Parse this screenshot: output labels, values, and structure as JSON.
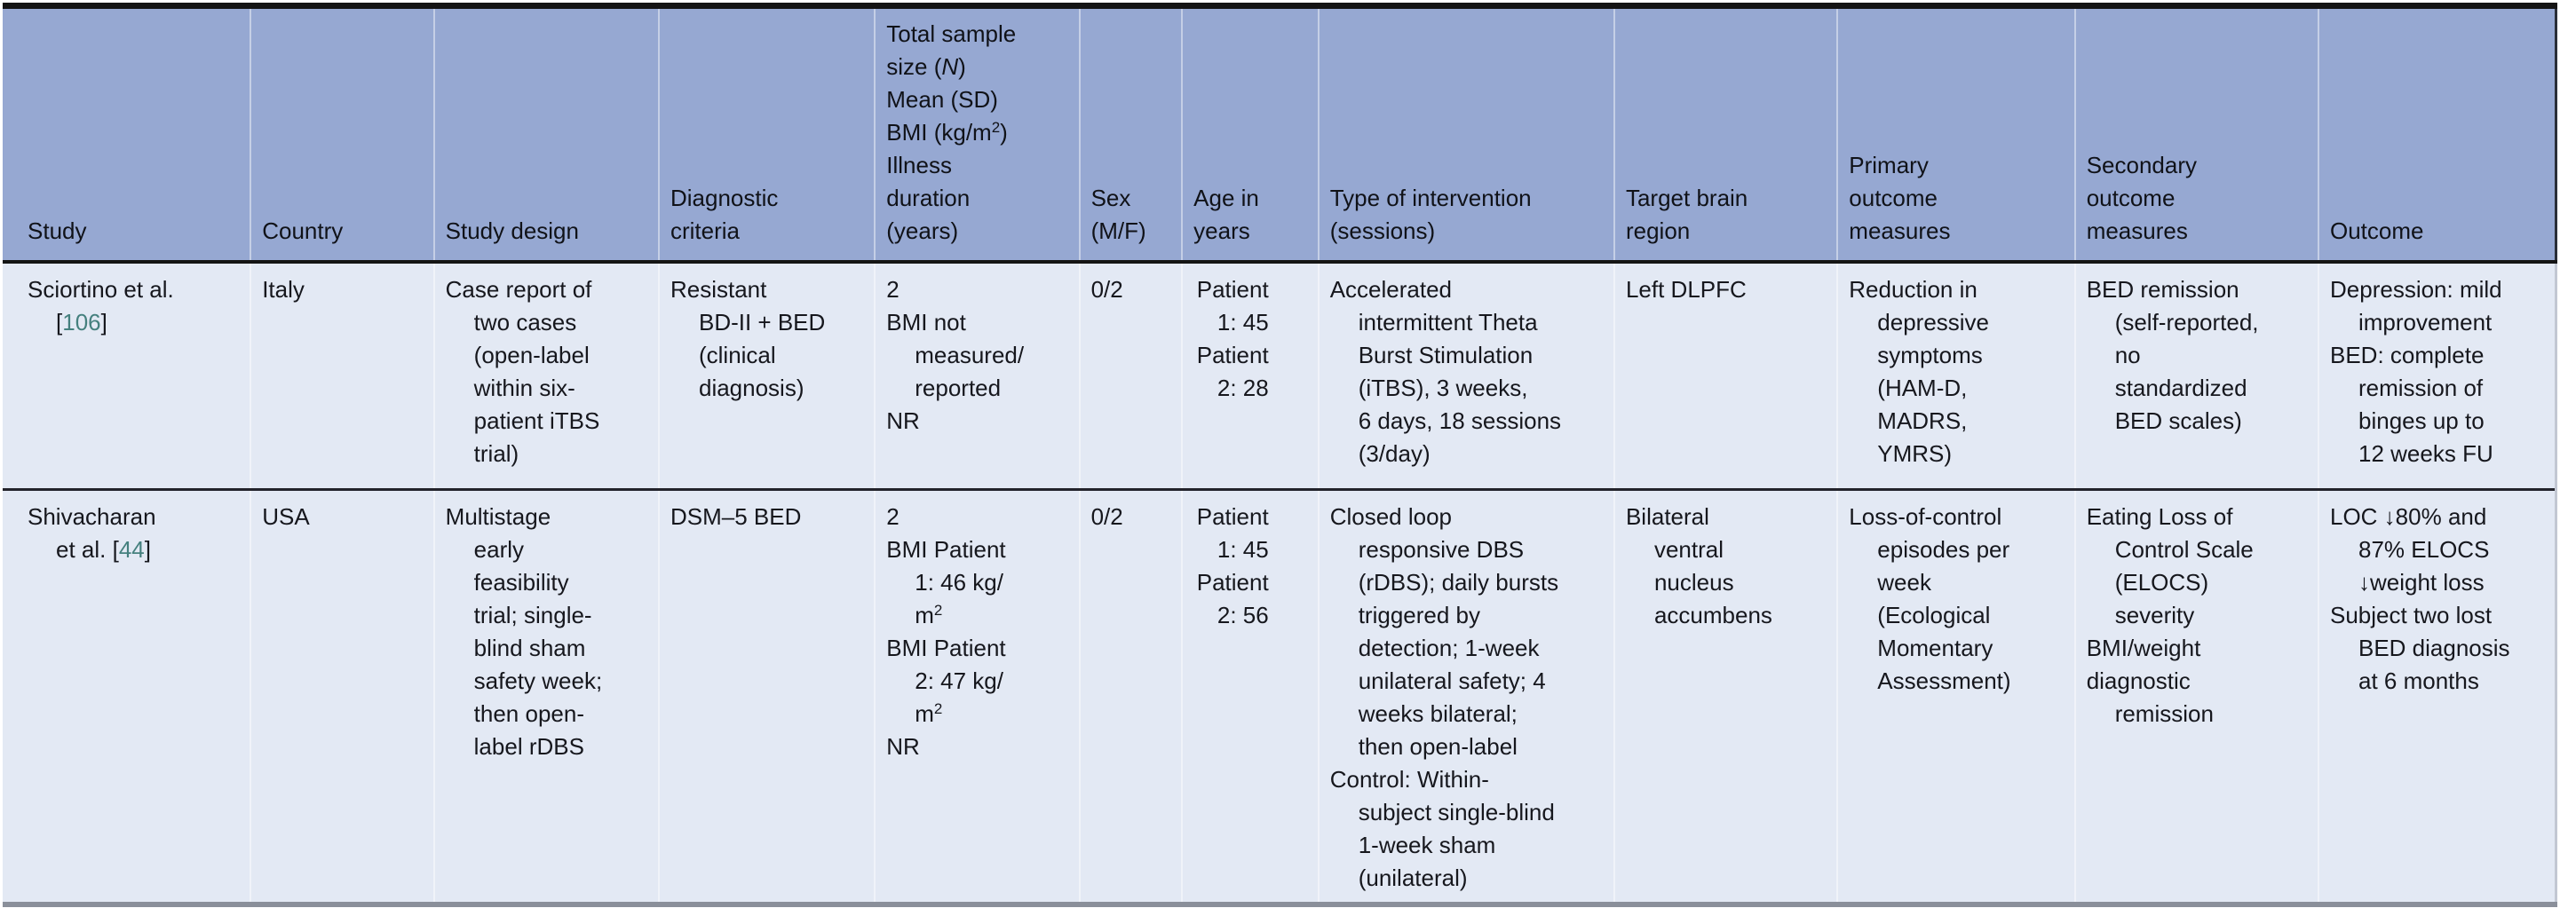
{
  "colors": {
    "header_bg": "#96a8d2",
    "body_bg": "#e3e9f4",
    "text": "#16171d",
    "header_text": "#101218",
    "ref": "#45807e",
    "top_rule": "#141414",
    "header_rule": "#141414",
    "row_divider": "#23232b",
    "bottom_rule": "#8a8f9a",
    "col_separator": "rgba(255,255,255,0.45)",
    "edge_dark": "#2a2e38",
    "edge_light": "#c2c7d2"
  },
  "table": {
    "columns": [
      {
        "id": "study",
        "width_pct": 9.71
      },
      {
        "id": "country",
        "width_pct": 7.18
      },
      {
        "id": "study-design",
        "width_pct": 8.81
      },
      {
        "id": "diagnostic-criteria",
        "width_pct": 8.46
      },
      {
        "id": "sample-size",
        "width_pct": 8.01
      },
      {
        "id": "sex",
        "width_pct": 4.02
      },
      {
        "id": "age",
        "width_pct": 5.34,
        "align": "right"
      },
      {
        "id": "intervention",
        "width_pct": 11.59
      },
      {
        "id": "target-region",
        "width_pct": 8.74
      },
      {
        "id": "primary-outcomes",
        "width_pct": 9.3
      },
      {
        "id": "secondary-outcomes",
        "width_pct": 9.54
      },
      {
        "id": "outcome",
        "width_pct": 9.3
      }
    ],
    "header": {
      "cells": [
        {
          "paras": [
            [
              {
                "t": "Study"
              }
            ]
          ]
        },
        {
          "paras": [
            [
              {
                "t": "Country"
              }
            ]
          ]
        },
        {
          "paras": [
            [
              {
                "t": "Study design"
              }
            ]
          ]
        },
        {
          "paras": [
            [
              {
                "t": "Diagnostic\ncriteria"
              }
            ]
          ]
        },
        {
          "paras": [
            [
              {
                "t": "Total sample\nsize ("
              },
              {
                "t": "N",
                "i": true
              },
              {
                "t": ")\nMean (SD)\nBMI (kg/m"
              },
              {
                "t": "2",
                "sup": true
              },
              {
                "t": ")\nIllness\nduration\n(years)"
              }
            ]
          ]
        },
        {
          "paras": [
            [
              {
                "t": "Sex\n(M/F)"
              }
            ]
          ]
        },
        {
          "align": "left",
          "paras": [
            [
              {
                "t": "Age in\nyears"
              }
            ]
          ]
        },
        {
          "paras": [
            [
              {
                "t": "Type of intervention\n(sessions)"
              }
            ]
          ]
        },
        {
          "paras": [
            [
              {
                "t": "Target brain\nregion"
              }
            ]
          ]
        },
        {
          "paras": [
            [
              {
                "t": "Primary\noutcome\nmeasures"
              }
            ]
          ]
        },
        {
          "paras": [
            [
              {
                "t": "Secondary\noutcome\nmeasures"
              }
            ]
          ]
        },
        {
          "paras": [
            [
              {
                "t": "Outcome"
              }
            ]
          ]
        }
      ]
    },
    "rows": [
      {
        "cells": [
          {
            "paras": [
              [
                {
                  "t": "Sciortino et al.\n["
                },
                {
                  "t": "106",
                  "c": "ref"
                },
                {
                  "t": "]"
                }
              ]
            ]
          },
          {
            "paras": [
              [
                {
                  "t": "Italy"
                }
              ]
            ]
          },
          {
            "paras": [
              [
                {
                  "t": "Case report of\ntwo cases\n(open-label\nwithin six-\npatient iTBS\ntrial)"
                }
              ]
            ]
          },
          {
            "paras": [
              [
                {
                  "t": "Resistant\nBD-II + BED\n(clinical\ndiagnosis)"
                }
              ]
            ]
          },
          {
            "paras": [
              [
                {
                  "t": "2"
                }
              ],
              [
                {
                  "t": "BMI not\nmeasured/\nreported"
                }
              ],
              [
                {
                  "t": "NR"
                }
              ]
            ]
          },
          {
            "paras": [
              [
                {
                  "t": "0/2"
                }
              ]
            ]
          },
          {
            "paras": [
              [
                {
                  "t": "Patient\n1: 45\nPatient\n2: 28"
                }
              ]
            ]
          },
          {
            "paras": [
              [
                {
                  "t": "Accelerated\nintermittent Theta\nBurst Stimulation\n(iTBS), 3 weeks,\n6 days, 18 sessions\n(3/day)"
                }
              ]
            ]
          },
          {
            "paras": [
              [
                {
                  "t": "Left DLPFC"
                }
              ]
            ]
          },
          {
            "paras": [
              [
                {
                  "t": "Reduction in\ndepressive\nsymptoms\n(HAM-D,\nMADRS,\nYMRS)"
                }
              ]
            ]
          },
          {
            "paras": [
              [
                {
                  "t": "BED remission\n(self-reported,\nno\nstandardized\nBED scales)"
                }
              ]
            ]
          },
          {
            "paras": [
              [
                {
                  "t": "Depression: mild\nimprovement"
                }
              ],
              [
                {
                  "t": "BED: complete\nremission of\nbinges up to\n12 weeks FU"
                }
              ]
            ]
          }
        ]
      },
      {
        "cells": [
          {
            "paras": [
              [
                {
                  "t": "Shivacharan\net al. ["
                },
                {
                  "t": "44",
                  "c": "ref"
                },
                {
                  "t": "]"
                }
              ]
            ]
          },
          {
            "paras": [
              [
                {
                  "t": "USA"
                }
              ]
            ]
          },
          {
            "paras": [
              [
                {
                  "t": "Multistage\nearly\nfeasibility\ntrial; single-\nblind sham\nsafety week;\nthen open-\nlabel rDBS"
                }
              ]
            ]
          },
          {
            "paras": [
              [
                {
                  "t": "DSM–5 BED"
                }
              ]
            ]
          },
          {
            "paras": [
              [
                {
                  "t": "2"
                }
              ],
              [
                {
                  "t": "BMI Patient\n1: 46 kg/\nm"
                },
                {
                  "t": "2",
                  "sup": true
                }
              ],
              [
                {
                  "t": "BMI Patient\n2: 47 kg/\nm"
                },
                {
                  "t": "2",
                  "sup": true
                }
              ],
              [
                {
                  "t": "NR"
                }
              ]
            ]
          },
          {
            "paras": [
              [
                {
                  "t": "0/2"
                }
              ]
            ]
          },
          {
            "paras": [
              [
                {
                  "t": "Patient\n1: 45\nPatient\n2: 56"
                }
              ]
            ]
          },
          {
            "paras": [
              [
                {
                  "t": "Closed loop\nresponsive DBS\n(rDBS); daily bursts\ntriggered by\ndetection; 1-week\nunilateral safety; 4\nweeks bilateral;\nthen open-label"
                }
              ],
              [
                {
                  "t": "Control: Within-\nsubject single-blind\n1-week sham\n(unilateral)"
                }
              ]
            ]
          },
          {
            "paras": [
              [
                {
                  "t": "Bilateral\nventral\nnucleus\naccumbens"
                }
              ]
            ]
          },
          {
            "paras": [
              [
                {
                  "t": "Loss-of-control\nepisodes per\nweek\n(Ecological\nMomentary\nAssessment)"
                }
              ]
            ]
          },
          {
            "paras": [
              [
                {
                  "t": "Eating Loss of\nControl Scale\n(ELOCS)\nseverity"
                }
              ],
              [
                {
                  "t": "BMI/weight"
                }
              ],
              [
                {
                  "t": "diagnostic\nremission"
                }
              ]
            ]
          },
          {
            "paras": [
              [
                {
                  "t": "LOC ↓80% and\n87% ELOCS\n↓weight loss"
                }
              ],
              [
                {
                  "t": "Subject two lost\nBED diagnosis\nat 6 months"
                }
              ]
            ]
          }
        ]
      }
    ]
  }
}
